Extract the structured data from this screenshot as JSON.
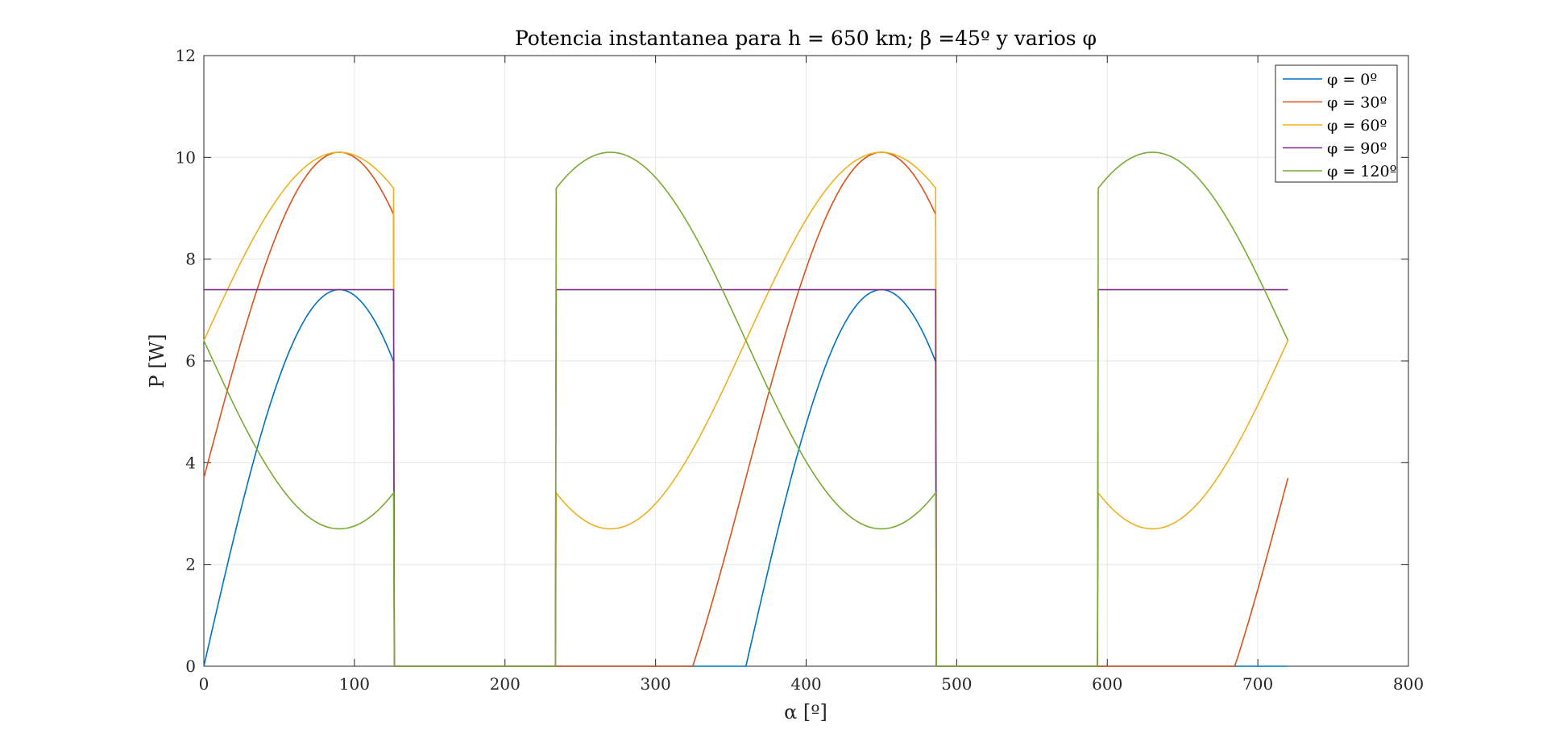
{
  "chart_data": {
    "type": "line",
    "title": "Potencia instantanea para h = 650 km; β =45º y varios φ",
    "xlabel": "α [º]",
    "ylabel": "P [W]",
    "xlim": [
      0,
      800
    ],
    "ylim": [
      0,
      12
    ],
    "xticks": [
      "0",
      "100",
      "200",
      "300",
      "400",
      "500",
      "600",
      "700",
      "800"
    ],
    "yticks": [
      "0",
      "2",
      "4",
      "6",
      "8",
      "10",
      "12"
    ],
    "grid": true,
    "legend_position": "top-right",
    "eclipse_intervals": [
      [
        126.3,
        233.7
      ],
      [
        486.3,
        593.7
      ]
    ],
    "series": [
      {
        "name": "φ = 0º",
        "phi": 0,
        "color": "#0072BD",
        "peak": 7.4,
        "at_alpha_0": 0.0,
        "at_alpha_720": 0.0
      },
      {
        "name": "φ = 30º",
        "phi": 30,
        "color": "#D95319",
        "peak": 10.1,
        "at_alpha_0": 3.7,
        "at_alpha_720": 3.7
      },
      {
        "name": "φ = 60º",
        "phi": 60,
        "color": "#EDB120",
        "peak": 10.1,
        "at_alpha_0": 6.4,
        "at_alpha_720": 6.4
      },
      {
        "name": "φ = 90º",
        "phi": 90,
        "color": "#7E2F8E",
        "peak": 7.4,
        "at_alpha_0": 7.4,
        "at_alpha_720": 7.4
      },
      {
        "name": "φ = 120º",
        "phi": 120,
        "color": "#77AC30",
        "peak": 10.1,
        "at_alpha_0": 6.4,
        "at_alpha_720": 6.4
      }
    ]
  }
}
